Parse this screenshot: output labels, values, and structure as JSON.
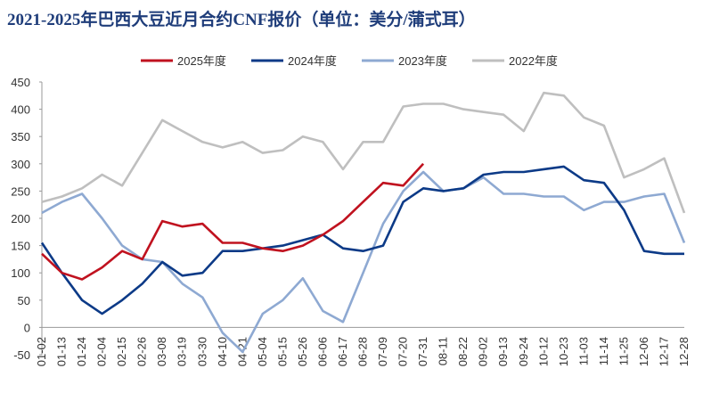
{
  "chart_data": {
    "type": "line",
    "title": "2021-2025年巴西大豆近月合约CNF报价（单位：美分/蒲式耳）",
    "categories": [
      "01-02",
      "01-13",
      "01-24",
      "02-04",
      "02-15",
      "02-26",
      "03-08",
      "03-19",
      "03-30",
      "04-10",
      "04-21",
      "05-04",
      "05-15",
      "05-26",
      "06-06",
      "06-17",
      "06-28",
      "07-09",
      "07-20",
      "07-31",
      "08-11",
      "08-22",
      "09-02",
      "09-13",
      "09-24",
      "10-12",
      "10-23",
      "11-03",
      "11-14",
      "11-25",
      "12-06",
      "12-17",
      "12-28"
    ],
    "series": [
      {
        "name": "2025年度",
        "color": "#c0121f",
        "values": [
          135,
          100,
          88,
          110,
          140,
          125,
          195,
          185,
          190,
          155,
          155,
          145,
          140,
          150,
          170,
          195,
          230,
          265,
          260,
          300,
          null,
          null,
          null,
          null,
          null,
          null,
          null,
          null,
          null,
          null,
          null,
          null,
          null
        ]
      },
      {
        "name": "2024年度",
        "color": "#0c3a87",
        "values": [
          155,
          100,
          50,
          25,
          50,
          80,
          120,
          95,
          100,
          140,
          140,
          145,
          150,
          160,
          170,
          145,
          140,
          150,
          230,
          255,
          250,
          255,
          280,
          285,
          285,
          290,
          295,
          270,
          265,
          215,
          140,
          135,
          135
        ]
      },
      {
        "name": "2023年度",
        "color": "#8ea9d2",
        "values": [
          210,
          230,
          245,
          200,
          150,
          125,
          120,
          80,
          55,
          -10,
          -45,
          25,
          50,
          90,
          30,
          10,
          100,
          190,
          250,
          285,
          250,
          255,
          275,
          245,
          245,
          240,
          240,
          215,
          230,
          230,
          240,
          245,
          155
        ]
      },
      {
        "name": "2022年度",
        "color": "#bfbfbf",
        "values": [
          230,
          240,
          255,
          280,
          260,
          320,
          380,
          360,
          340,
          330,
          340,
          320,
          325,
          350,
          340,
          290,
          340,
          340,
          405,
          410,
          410,
          400,
          395,
          390,
          360,
          430,
          425,
          385,
          370,
          275,
          290,
          310,
          210
        ]
      }
    ],
    "ylim": [
      -50,
      450
    ],
    "yticks": [
      -50,
      0,
      50,
      100,
      150,
      200,
      250,
      300,
      350,
      400,
      450
    ]
  }
}
